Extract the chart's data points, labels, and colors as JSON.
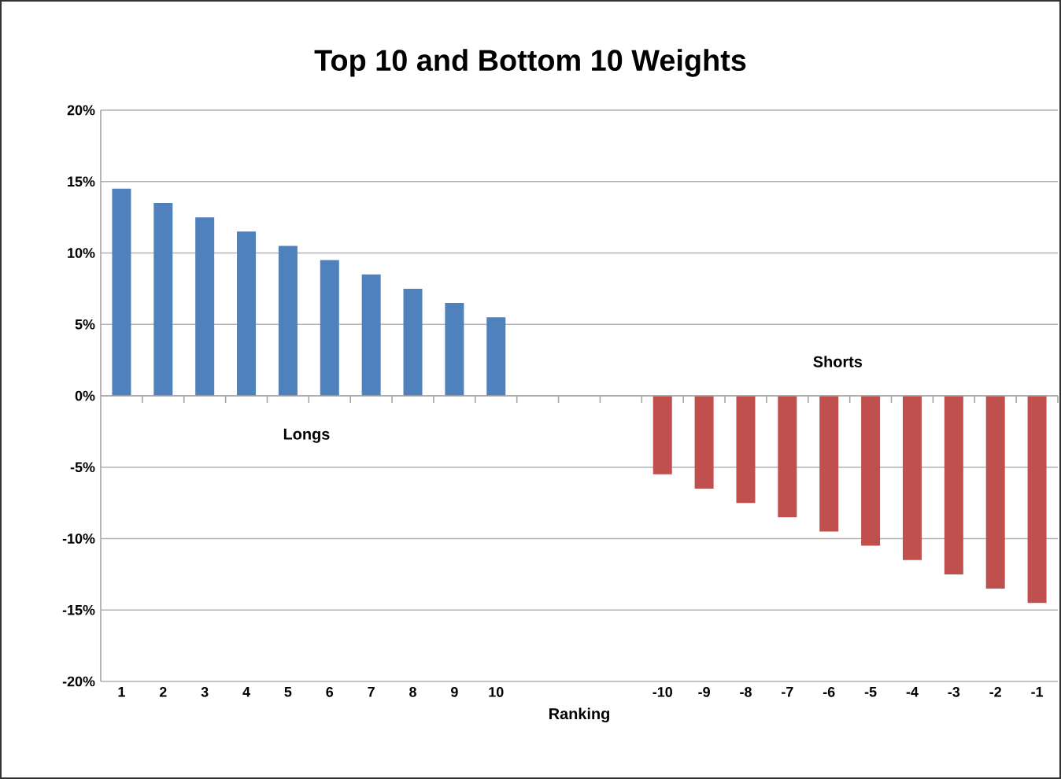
{
  "chart_data": {
    "type": "bar",
    "title": "Top 10 and Bottom 10 Weights",
    "xlabel": "Ranking",
    "categories": [
      "1",
      "2",
      "3",
      "4",
      "5",
      "6",
      "7",
      "8",
      "9",
      "10",
      null,
      null,
      null,
      "-10",
      "-9",
      "-8",
      "-7",
      "-6",
      "-5",
      "-4",
      "-3",
      "-2",
      "-1"
    ],
    "values": [
      14.5,
      13.5,
      12.5,
      11.5,
      10.5,
      9.5,
      8.5,
      7.5,
      6.5,
      5.5,
      null,
      null,
      null,
      -5.5,
      -6.5,
      -7.5,
      -8.5,
      -9.5,
      -10.5,
      -11.5,
      -12.5,
      -13.5,
      -14.5
    ],
    "colors": [
      "#4f81bd",
      "#4f81bd",
      "#4f81bd",
      "#4f81bd",
      "#4f81bd",
      "#4f81bd",
      "#4f81bd",
      "#4f81bd",
      "#4f81bd",
      "#4f81bd",
      null,
      null,
      null,
      "#c0504d",
      "#c0504d",
      "#c0504d",
      "#c0504d",
      "#c0504d",
      "#c0504d",
      "#c0504d",
      "#c0504d",
      "#c0504d",
      "#c0504d"
    ],
    "ylim": [
      -20,
      20
    ],
    "yticks": [
      {
        "value": -20,
        "label": "-20%"
      },
      {
        "value": -15,
        "label": "-15%"
      },
      {
        "value": -10,
        "label": "-10%"
      },
      {
        "value": -5,
        "label": "-5%"
      },
      {
        "value": 0,
        "label": "0%"
      },
      {
        "value": 5,
        "label": "5%"
      },
      {
        "value": 10,
        "label": "10%"
      },
      {
        "value": 15,
        "label": "15%"
      },
      {
        "value": 20,
        "label": "20%"
      }
    ],
    "grid": "y",
    "annotations": [
      "Longs",
      "Shorts"
    ]
  }
}
